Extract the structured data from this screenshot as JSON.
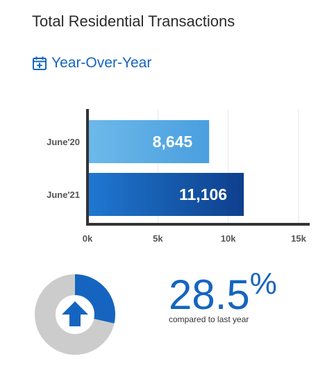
{
  "header": {
    "title": "Total Residential Transactions",
    "tab_label": "Year-Over-Year",
    "tab_icon": "calendar-plus-icon"
  },
  "chart_data": {
    "type": "bar",
    "orientation": "horizontal",
    "categories": [
      "June'20",
      "June'21"
    ],
    "values": [
      8645,
      11106
    ],
    "value_labels": [
      "8,645",
      "11,106"
    ],
    "xticks": [
      "0k",
      "5k",
      "10k",
      "15k"
    ],
    "xlim": [
      0,
      15000
    ],
    "grid": true,
    "colors": {
      "bar1_start": "#6db9ea",
      "bar1_end": "#4a9fdf",
      "bar2_start": "#1f78d1",
      "bar2_end": "#0e3f8c"
    }
  },
  "summary": {
    "percent_value": "28.5",
    "percent_symbol": "%",
    "caption": "compared to last year",
    "direction_icon": "arrow-up-icon",
    "donut_fraction": 0.285,
    "accent_color": "#1565c0",
    "track_color": "#cccccc"
  }
}
